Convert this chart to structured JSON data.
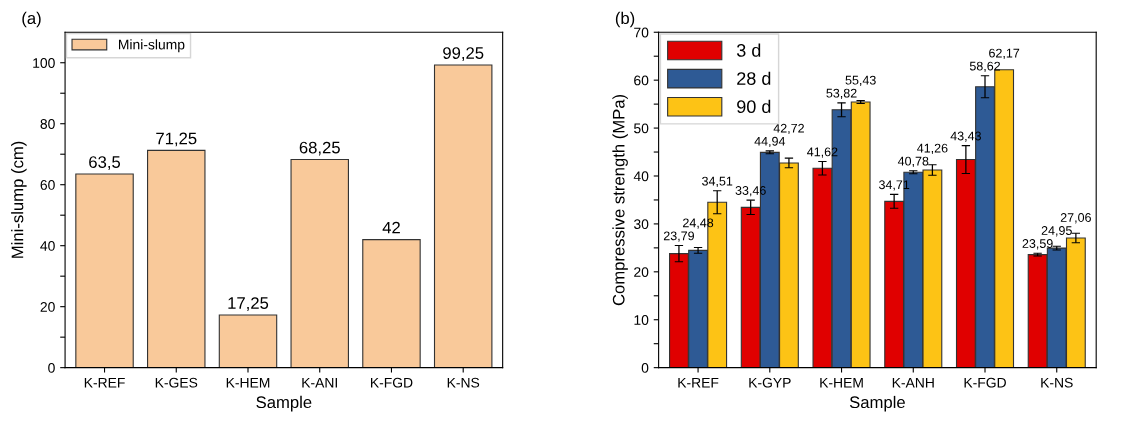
{
  "chart_data": [
    {
      "type": "bar",
      "title": "(a)",
      "xlabel": "Sample",
      "ylabel": "Mini-slump (cm)",
      "categories": [
        "K-REF",
        "K-GES",
        "K-HEM",
        "K-ANI",
        "K-FGD",
        "K-NS"
      ],
      "series": [
        {
          "name": "Mini-slump",
          "color": "#f9c99a",
          "values": [
            63.5,
            71.25,
            17.25,
            68.25,
            42,
            99.25
          ],
          "value_labels": [
            "63,5",
            "71,25",
            "17,25",
            "68,25",
            "42",
            "99,25"
          ]
        }
      ],
      "ylim": [
        0,
        110
      ],
      "yticks": [
        0,
        {
          "value": 10,
          "label": null
        },
        20,
        {
          "value": 30,
          "label": null
        },
        40,
        {
          "value": 50,
          "label": null
        },
        60,
        {
          "value": 70,
          "label": null
        },
        80,
        {
          "value": 90,
          "label": null
        },
        100
      ],
      "legend": "top left",
      "grid": false
    },
    {
      "type": "bar",
      "title": "(b)",
      "xlabel": "Sample",
      "ylabel": "Compressive strength (MPa)",
      "categories": [
        "K-REF",
        "K-GYP",
        "K-HEM",
        "K-ANH",
        "K-FGD",
        "K-NS"
      ],
      "series": [
        {
          "name": "3 d",
          "color": "#e00000",
          "values": [
            23.79,
            33.46,
            41.62,
            34.71,
            43.43,
            23.59
          ],
          "errors": [
            1.7,
            1.5,
            1.4,
            1.45,
            2.9,
            0.3
          ],
          "value_labels": [
            "23,79",
            "33,46",
            "41,62",
            "34,71",
            "43,43",
            "23,59"
          ]
        },
        {
          "name": "28 d",
          "color": "#2e5a95",
          "values": [
            24.48,
            44.94,
            53.82,
            40.78,
            58.62,
            24.95
          ],
          "errors": [
            0.6,
            0.3,
            1.45,
            0.3,
            2.3,
            0.4
          ],
          "value_labels": [
            "24,48",
            "44,94",
            "53,82",
            "40,78",
            "58,62",
            "24,95"
          ]
        },
        {
          "name": "90 d",
          "color": "#fdc315",
          "values": [
            34.51,
            42.72,
            55.43,
            41.26,
            62.17,
            27.06
          ],
          "errors": [
            2.4,
            1.0,
            0.3,
            1.1,
            null,
            1.0
          ],
          "value_labels": [
            "34,51",
            "42,72",
            "55,43",
            "41,26",
            "62,17",
            "27,06"
          ]
        }
      ],
      "ylim": [
        0,
        70
      ],
      "yticks": [
        0,
        {
          "value": 5,
          "label": null
        },
        10,
        {
          "value": 15,
          "label": null
        },
        20,
        {
          "value": 25,
          "label": null
        },
        30,
        {
          "value": 35,
          "label": null
        },
        40,
        {
          "value": 45,
          "label": null
        },
        50,
        {
          "value": 55,
          "label": null
        },
        60,
        {
          "value": 65,
          "label": null
        },
        70
      ],
      "legend": "top left",
      "grid": false
    }
  ]
}
